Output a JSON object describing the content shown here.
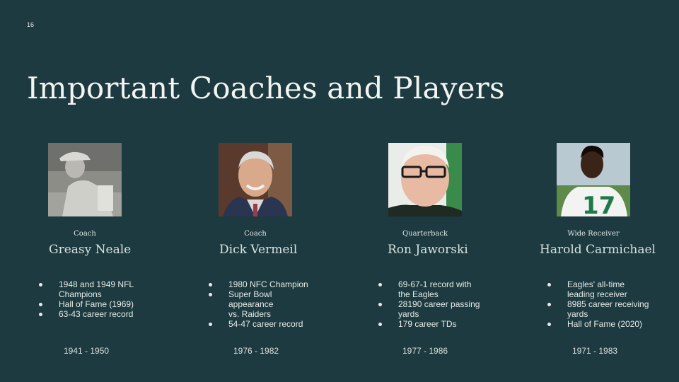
{
  "slide_number": "16",
  "title": "Important Coaches and Players",
  "people": [
    {
      "role": "Coach",
      "name": "Greasy Neale",
      "bullets": [
        "1948 and 1949 NFL Champions",
        "Hall of Fame (1969)",
        "63-43 career record"
      ],
      "years": "1941 - 1950"
    },
    {
      "role": "Coach",
      "name": "Dick Vermeil",
      "bullets": [
        "1980 NFC Champion",
        "Super Bowl appearance vs. Raiders",
        "54-47 career record"
      ],
      "years": "1976 - 1982"
    },
    {
      "role": "Quarterback",
      "name": "Ron Jaworski",
      "bullets": [
        "69-67-1 record with the Eagles",
        "28190 career passing yards",
        "179 career TDs"
      ],
      "years": "1977 - 1986"
    },
    {
      "role": "Wide Receiver",
      "name": "Harold Carmichael",
      "bullets": [
        "Eagles' all-time leading receiver",
        "8985 career receiving yards",
        "Hall of Fame (2020)"
      ],
      "years": "1971 - 1983"
    }
  ],
  "colors": {
    "background": "#1c3a40",
    "text": "#e8ece9"
  }
}
